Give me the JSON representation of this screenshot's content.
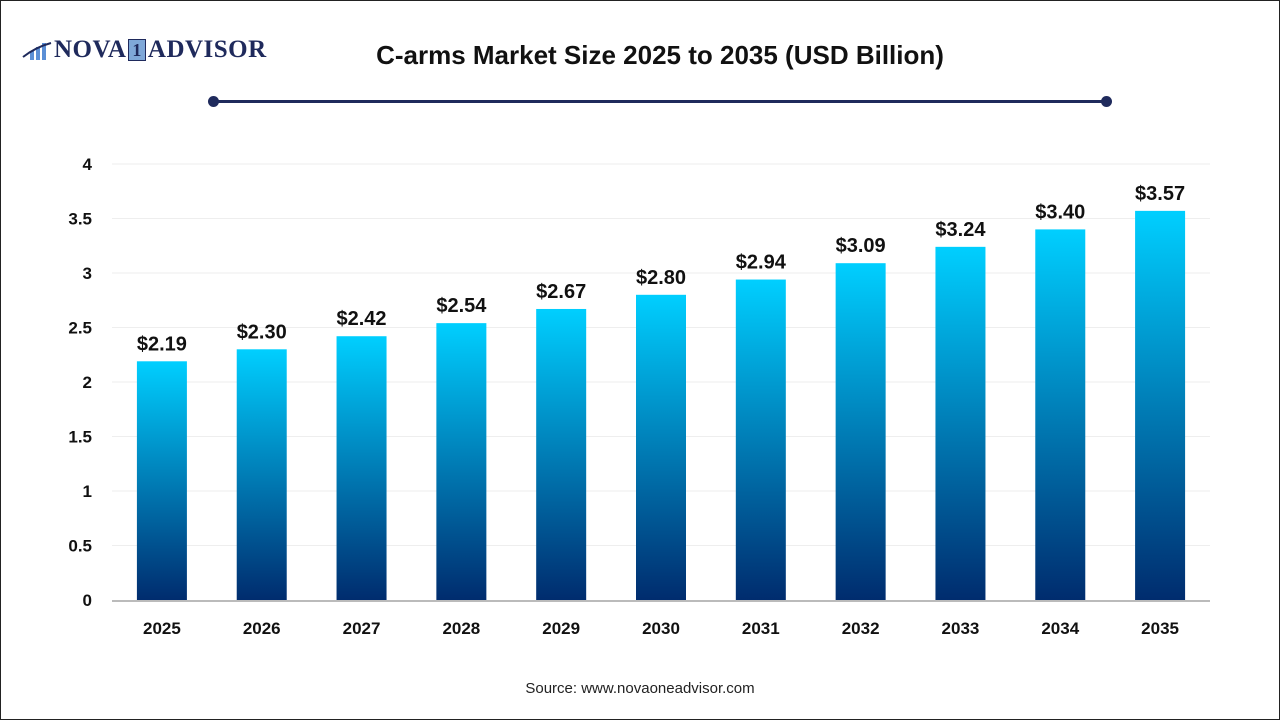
{
  "header": {
    "logo_text": "NOVA 1 ADVISOR",
    "title": "C-arms Market Size 2025 to 2035 (USD Billion)"
  },
  "footer": {
    "source": "Source: www.novaoneadvisor.com"
  },
  "chart_data": {
    "type": "bar",
    "title": "C-arms Market Size 2025 to 2035 (USD Billion)",
    "categories": [
      "2025",
      "2026",
      "2027",
      "2028",
      "2029",
      "2030",
      "2031",
      "2032",
      "2033",
      "2034",
      "2035"
    ],
    "values": [
      2.19,
      2.3,
      2.42,
      2.54,
      2.67,
      2.8,
      2.94,
      3.09,
      3.24,
      3.4,
      3.57
    ],
    "data_labels": [
      "$2.19",
      "$2.30",
      "$2.42",
      "$2.54",
      "$2.67",
      "$2.80",
      "$2.94",
      "$3.09",
      "$3.24",
      "$3.40",
      "$3.57"
    ],
    "yticks": [
      "0",
      "0.5",
      "1",
      "1.5",
      "2",
      "2.5",
      "3",
      "3.5",
      "4"
    ],
    "ylim": [
      0,
      4
    ],
    "grid": true,
    "legend": "none",
    "colors": {
      "bar_top": "#00cfff",
      "bar_bottom": "#002c6e",
      "accent": "#1f2a5c"
    }
  }
}
